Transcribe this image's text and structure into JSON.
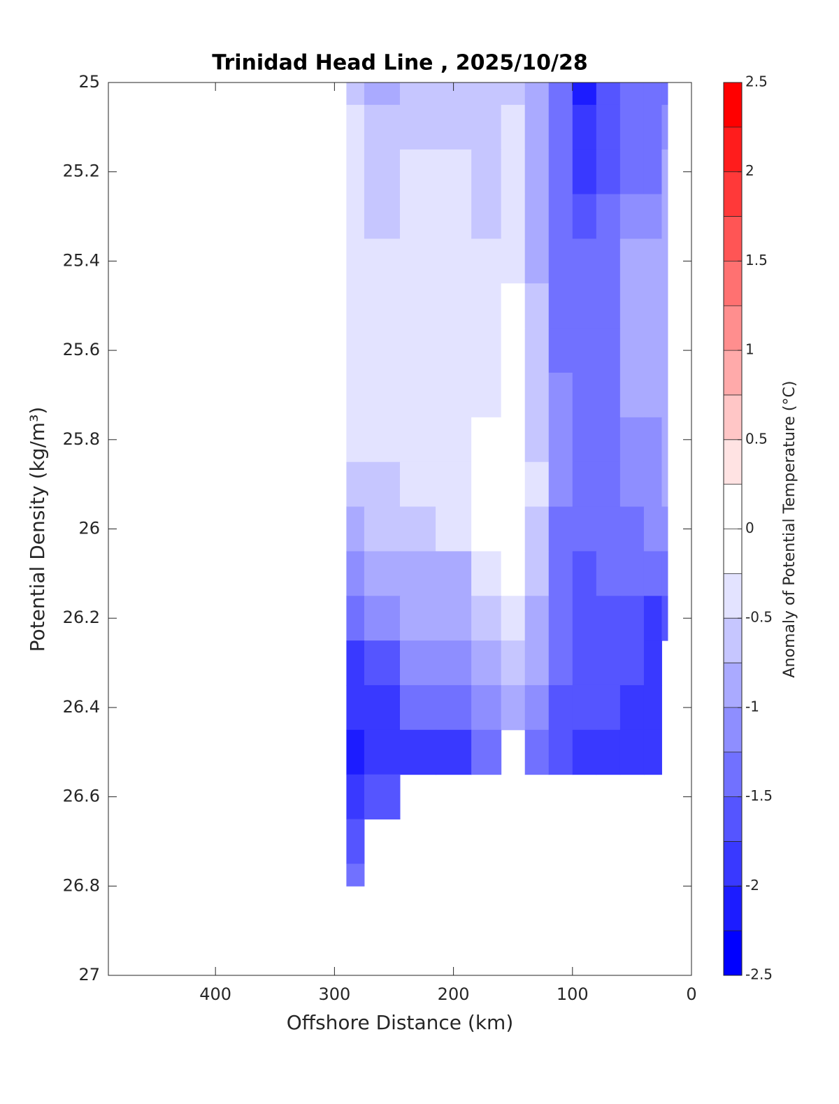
{
  "chart_data": {
    "type": "contourf",
    "title": "Trinidad Head Line , 2025/10/28",
    "x_label": "Offshore Distance (km)",
    "y_label": "Potential Density (kg/m³)",
    "colorbar_label": "Anomaly of Potential Temperature (°C)",
    "x": [
      290,
      260,
      230,
      200,
      170,
      150,
      130,
      110,
      90,
      70,
      50,
      30,
      20
    ],
    "y": [
      25.0,
      25.1,
      25.2,
      25.3,
      25.4,
      25.5,
      25.6,
      25.7,
      25.8,
      25.9,
      26.0,
      26.1,
      26.2,
      26.3,
      26.4,
      26.5,
      26.6,
      26.7,
      26.8
    ],
    "z": [
      [
        -0.6,
        -0.8,
        -0.6,
        -0.7,
        -0.6,
        -0.6,
        -1.0,
        -1.5,
        -2.1,
        -1.7,
        -1.5,
        -1.4,
        -1.3
      ],
      [
        -0.5,
        -0.7,
        -0.6,
        -0.6,
        -0.6,
        -0.5,
        -1.0,
        -1.5,
        -2.0,
        -1.7,
        -1.5,
        -1.4,
        -1.2
      ],
      [
        -0.5,
        -0.7,
        -0.5,
        -0.5,
        -0.6,
        -0.4,
        -0.9,
        -1.4,
        -1.8,
        -1.6,
        -1.4,
        -1.3,
        -1.0
      ],
      [
        -0.4,
        -0.6,
        -0.4,
        -0.5,
        -0.6,
        -0.4,
        -0.9,
        -1.3,
        -1.6,
        -1.4,
        -1.2,
        -1.1,
        -0.9
      ],
      [
        -0.4,
        -0.5,
        -0.4,
        -0.4,
        -0.5,
        -0.3,
        -0.8,
        -1.3,
        -1.5,
        -1.3,
        -1.0,
        -1.0,
        -0.8
      ],
      [
        -0.4,
        -0.4,
        -0.4,
        -0.4,
        -0.4,
        -0.2,
        -0.7,
        -1.3,
        -1.5,
        -1.3,
        -0.9,
        -1.0,
        -0.8
      ],
      [
        -0.4,
        -0.4,
        -0.4,
        -0.4,
        -0.4,
        -0.1,
        -0.6,
        -1.3,
        -1.5,
        -1.3,
        -0.9,
        -1.0,
        -0.8
      ],
      [
        -0.4,
        -0.4,
        -0.4,
        -0.4,
        -0.4,
        -0.1,
        -0.6,
        -1.2,
        -1.5,
        -1.3,
        -1.0,
        -1.0,
        -0.8
      ],
      [
        -0.5,
        -0.4,
        -0.4,
        -0.4,
        -0.2,
        -0.1,
        -0.6,
        -1.2,
        -1.5,
        -1.3,
        -1.1,
        -1.1,
        -0.9
      ],
      [
        -0.6,
        -0.6,
        -0.5,
        -0.4,
        -0.2,
        -0.1,
        -0.5,
        -1.2,
        -1.5,
        -1.4,
        -1.2,
        -1.2,
        -1.0
      ],
      [
        -0.8,
        -0.7,
        -0.6,
        -0.4,
        -0.2,
        -0.1,
        -0.6,
        -1.3,
        -1.5,
        -1.4,
        -1.3,
        -1.2,
        -1.1
      ],
      [
        -1.1,
        -1.0,
        -0.8,
        -0.8,
        -0.4,
        -0.2,
        -0.7,
        -1.4,
        -1.6,
        -1.5,
        -1.4,
        -1.4,
        -1.3
      ],
      [
        -1.4,
        -1.2,
        -1.0,
        -0.9,
        -0.6,
        -0.4,
        -0.8,
        -1.4,
        -1.6,
        -1.6,
        -1.6,
        -1.8,
        -1.7
      ],
      [
        -1.8,
        -1.6,
        -1.2,
        -1.1,
        -0.9,
        -0.7,
        -1.0,
        -1.5,
        -1.7,
        -1.6,
        -1.7,
        -1.9,
        null
      ],
      [
        -1.9,
        -1.8,
        -1.5,
        -1.4,
        -1.2,
        -1.0,
        -1.2,
        -1.6,
        -1.7,
        -1.7,
        -1.8,
        -2.0,
        null
      ],
      [
        -2.1,
        -1.9,
        -1.8,
        -1.8,
        -1.3,
        null,
        -1.4,
        -1.7,
        -1.8,
        -1.8,
        -2.0,
        -2.0,
        null
      ],
      [
        -1.8,
        -1.7,
        null,
        null,
        null,
        null,
        null,
        null,
        null,
        null,
        null,
        null,
        null
      ],
      [
        -1.6,
        null,
        null,
        null,
        null,
        null,
        null,
        null,
        null,
        null,
        null,
        null,
        null
      ],
      [
        -1.5,
        null,
        null,
        null,
        null,
        null,
        null,
        null,
        null,
        null,
        null,
        null,
        null
      ]
    ],
    "xlim": [
      490,
      0
    ],
    "xticks": [
      400,
      300,
      200,
      100,
      0
    ],
    "ylim": [
      25,
      27
    ],
    "yticks": [
      25,
      25.2,
      25.4,
      25.6,
      25.8,
      26,
      26.2,
      26.4,
      26.6,
      26.8,
      27
    ],
    "levels": [
      -2.5,
      -2.25,
      -2,
      -1.75,
      -1.5,
      -1.25,
      -1,
      -0.75,
      -0.5,
      -0.25,
      0,
      0.25,
      0.5,
      0.75,
      1,
      1.25,
      1.5,
      1.75,
      2,
      2.25,
      2.5
    ],
    "colors": [
      "#0000ff",
      "#1c1cff",
      "#3939ff",
      "#5555ff",
      "#7171ff",
      "#8e8eff",
      "#aaaaff",
      "#c6c6ff",
      "#e3e3ff",
      "#ffffff",
      "#ffffff",
      "#ffe3e3",
      "#ffc6c6",
      "#ffaaaa",
      "#ff8e8e",
      "#ff7171",
      "#ff5555",
      "#ff3939",
      "#ff1c1c",
      "#ff0000"
    ],
    "cticks": [
      -2.5,
      -2,
      -1.5,
      -1,
      -0.5,
      0,
      0.5,
      1,
      1.5,
      2,
      2.5
    ]
  }
}
